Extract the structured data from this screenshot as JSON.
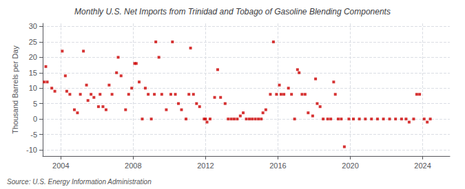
{
  "chart_data": {
    "type": "scatter",
    "title": "Monthly U.S. Net Imports from Trinidad and Tobago of Gasoline Blending Components",
    "ylabel": "Thousand Barrels per Day",
    "annotation": "Source: U.S. Energy Information Administration",
    "color": "#cc0000",
    "marker": "square",
    "grid": true,
    "xlim": [
      2003.0,
      2025.5
    ],
    "xticks": [
      2004,
      2008,
      2012,
      2016,
      2020,
      2024
    ],
    "ylim": [
      -12,
      31
    ],
    "yticks": [
      -10,
      -5,
      0,
      5,
      10,
      15,
      20,
      25,
      30
    ],
    "x": [
      2003.08,
      2003.17,
      2003.25,
      2003.5,
      2003.67,
      2004.08,
      2004.25,
      2004.33,
      2004.5,
      2004.75,
      2004.92,
      2005.08,
      2005.25,
      2005.42,
      2005.5,
      2005.67,
      2005.83,
      2006.08,
      2006.17,
      2006.33,
      2006.5,
      2006.67,
      2006.83,
      2007.08,
      2007.17,
      2007.33,
      2007.58,
      2007.75,
      2007.92,
      2008.08,
      2008.17,
      2008.33,
      2008.5,
      2008.67,
      2008.83,
      2009.0,
      2009.17,
      2009.25,
      2009.42,
      2009.58,
      2009.83,
      2010.08,
      2010.17,
      2010.33,
      2010.5,
      2010.67,
      2010.92,
      2011.08,
      2011.17,
      2011.33,
      2011.5,
      2011.67,
      2011.92,
      2012.0,
      2012.08,
      2012.25,
      2012.5,
      2012.67,
      2012.83,
      2013.08,
      2013.25,
      2013.42,
      2013.58,
      2013.75,
      2013.92,
      2014.08,
      2014.25,
      2014.42,
      2014.58,
      2014.75,
      2014.92,
      2015.08,
      2015.17,
      2015.33,
      2015.58,
      2015.75,
      2015.92,
      2016.08,
      2016.17,
      2016.33,
      2016.58,
      2016.75,
      2016.92,
      2017.08,
      2017.17,
      2017.33,
      2017.5,
      2017.67,
      2017.92,
      2018.08,
      2018.17,
      2018.33,
      2018.5,
      2018.75,
      2018.92,
      2019.08,
      2019.17,
      2019.33,
      2019.5,
      2019.67,
      2019.92,
      2020.17,
      2020.5,
      2020.83,
      2021.17,
      2021.5,
      2021.83,
      2022.17,
      2022.5,
      2022.83,
      2023.08,
      2023.25,
      2023.5,
      2023.67,
      2023.83,
      2024.08,
      2024.25,
      2024.42
    ],
    "values": [
      12,
      17,
      12,
      10,
      9,
      22,
      14,
      9,
      8,
      3,
      2,
      8,
      22,
      11,
      6,
      8,
      7,
      4,
      8,
      4,
      3,
      11,
      8,
      15,
      20,
      14,
      3,
      8,
      10,
      18,
      18,
      12,
      0,
      10,
      8,
      0,
      8,
      25,
      20,
      8,
      3,
      8,
      25,
      8,
      5,
      3,
      0,
      8,
      23,
      8,
      5,
      4,
      0,
      0,
      -1,
      0,
      7,
      16,
      7,
      5,
      0,
      0,
      0,
      0,
      1,
      2,
      0,
      0,
      0,
      0,
      0,
      0,
      2,
      3,
      8,
      25,
      8,
      11,
      8,
      8,
      10,
      8,
      0,
      16,
      15,
      8,
      8,
      2,
      1,
      13,
      5,
      4,
      0,
      0,
      0,
      12,
      8,
      0,
      0,
      -9,
      0,
      0,
      0,
      0,
      0,
      0,
      0,
      0,
      0,
      0,
      0,
      -1,
      0,
      8,
      8,
      0,
      -1,
      0
    ]
  }
}
